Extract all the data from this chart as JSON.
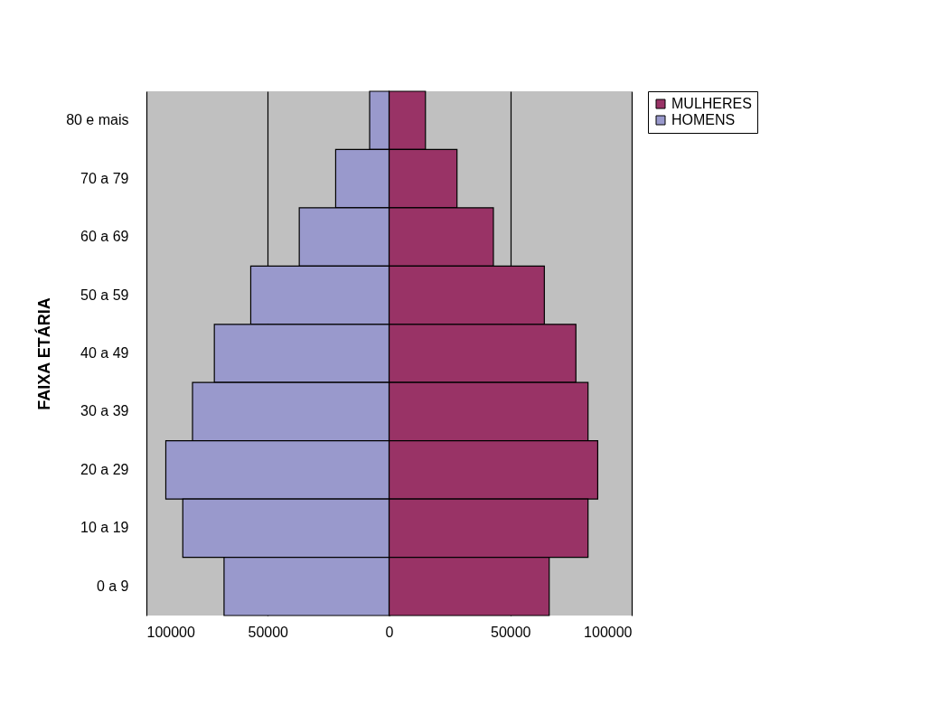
{
  "chart_data": {
    "type": "bar",
    "orientation": "horizontal",
    "ylabel": "FAIXA ETÁRIA",
    "categories": [
      "80 e mais",
      "70 a 79",
      "60 a 69",
      "50 a 59",
      "40 a 49",
      "30 a 39",
      "20 a 29",
      "10 a 19",
      "0 a 9"
    ],
    "series": [
      {
        "name": "MULHERES",
        "color": "#993366",
        "values": [
          15000,
          28000,
          43000,
          64000,
          77000,
          82000,
          86000,
          82000,
          66000
        ]
      },
      {
        "name": "HOMENS",
        "color": "#9999cc",
        "values": [
          -8000,
          -22000,
          -37000,
          -57000,
          -72000,
          -81000,
          -92000,
          -85000,
          -68000
        ]
      }
    ],
    "xlim": [
      -100000,
      100000
    ],
    "xticks": [
      {
        "value": -100000,
        "label": "100000"
      },
      {
        "value": -50000,
        "label": "50000"
      },
      0,
      50000,
      100000
    ],
    "grid": "x",
    "legend": "right",
    "stacked": true
  }
}
